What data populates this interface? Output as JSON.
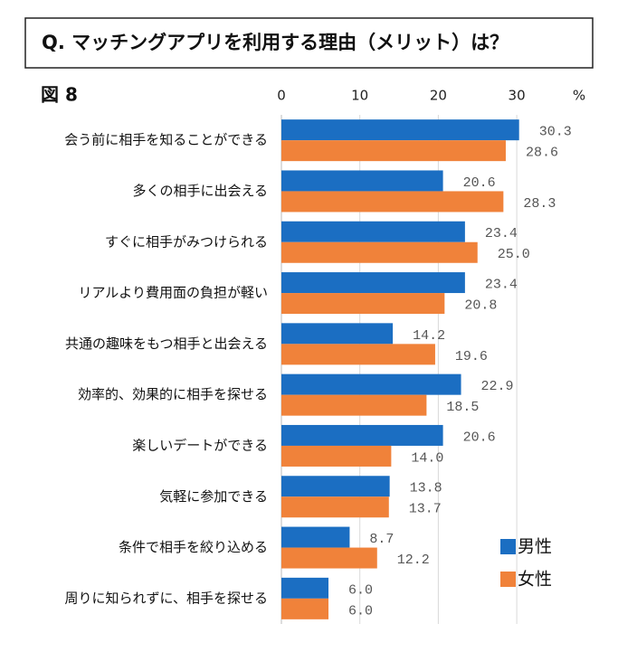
{
  "chart_data": {
    "type": "bar",
    "orientation": "horizontal",
    "title": "Q. マッチングアプリを利用する理由（メリット）は？",
    "figure_label": "図 8",
    "x_unit": "%",
    "categories": [
      "会う前に相手を知ることができる",
      "多くの相手に出会える",
      "すぐに相手がみつけられる",
      "リアルより費用面の負担が軽い",
      "共通の趣味をもつ相手と出会える",
      "効率的、効果的に相手を探せる",
      "楽しいデートができる",
      "気軽に参加できる",
      "条件で相手を絞り込める",
      "周りに知られずに、相手を探せる"
    ],
    "series": [
      {
        "name": "男性",
        "color": "#1b6ec2",
        "values": [
          30.3,
          20.6,
          23.4,
          23.4,
          14.2,
          22.9,
          20.6,
          13.8,
          8.7,
          6.0
        ],
        "value_labels": [
          "30.3",
          "20.6",
          "23.4",
          "23.4",
          "14.2",
          "22.9",
          "20.6",
          "13.8",
          "8.7",
          "6.0"
        ]
      },
      {
        "name": "女性",
        "color": "#f0823a",
        "values": [
          28.6,
          28.3,
          25.0,
          20.8,
          19.6,
          18.5,
          14.0,
          13.7,
          12.2,
          6.0
        ],
        "value_labels": [
          "28.6",
          "28.3",
          "25.0",
          "20.8",
          "19.6",
          "18.5",
          "14.0",
          "13.7",
          "12.2",
          "6.0"
        ]
      }
    ],
    "xlim": [
      0,
      35
    ],
    "xticks": [
      0,
      10,
      20,
      30
    ],
    "grid": true,
    "legend": "lower right"
  }
}
